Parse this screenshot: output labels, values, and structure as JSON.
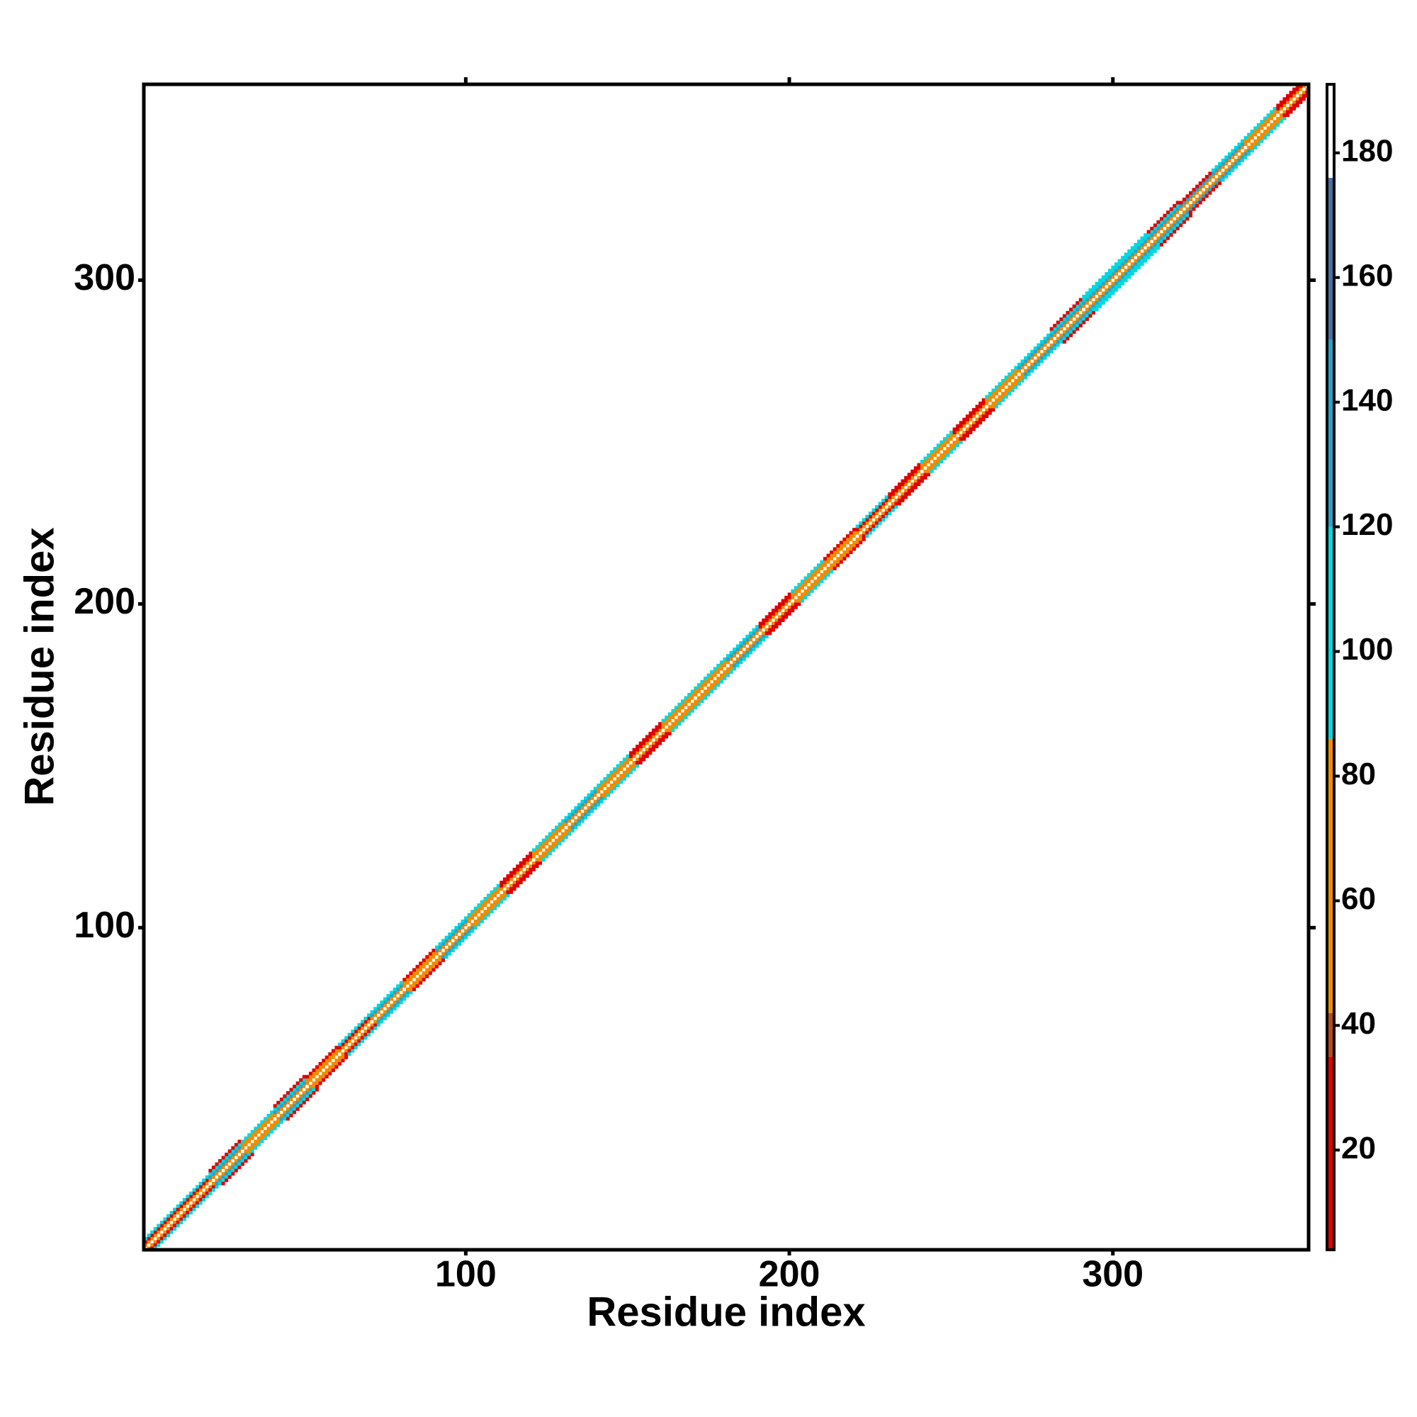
{
  "chart_data": {
    "type": "heatmap",
    "x_label": "Residue index",
    "y_label": "Residue index",
    "xlim": [
      0.5,
      360.5
    ],
    "ylim": [
      0.5,
      360.5
    ],
    "xticks": [
      100,
      200,
      300
    ],
    "yticks": [
      100,
      200,
      300
    ],
    "colorbar": {
      "clim": [
        4,
        191
      ],
      "ticks": [
        20,
        40,
        60,
        80,
        100,
        120,
        140,
        160,
        180
      ],
      "colormap": [
        {
          "max": 35,
          "color": "#e00000"
        },
        {
          "max": 42,
          "color": "#b54a1e"
        },
        {
          "max": 86,
          "color": "#f08c00"
        },
        {
          "max": 120,
          "color": "#00d8e0"
        },
        {
          "max": 150,
          "color": "#2f9fc4"
        },
        {
          "max": 176,
          "color": "#4a6fa0"
        },
        {
          "color": "#ffffff"
        }
      ]
    },
    "segments": [
      {
        "start": 1,
        "end": 10,
        "values": [
          185,
          60,
          20,
          100,
          null
        ]
      },
      {
        "start": 11,
        "end": 20,
        "values": [
          185,
          60,
          15,
          100,
          null
        ]
      },
      {
        "start": 21,
        "end": 30,
        "values": [
          185,
          55,
          140,
          95,
          15
        ]
      },
      {
        "start": 31,
        "end": 40,
        "values": [
          185,
          60,
          70,
          100,
          null
        ]
      },
      {
        "start": 41,
        "end": 50,
        "values": [
          185,
          55,
          140,
          95,
          15
        ]
      },
      {
        "start": 51,
        "end": 60,
        "values": [
          185,
          60,
          70,
          15,
          null
        ]
      },
      {
        "start": 61,
        "end": 70,
        "values": [
          185,
          60,
          20,
          100,
          null
        ]
      },
      {
        "start": 71,
        "end": 80,
        "values": [
          185,
          55,
          140,
          95,
          null
        ]
      },
      {
        "start": 81,
        "end": 90,
        "values": [
          185,
          60,
          70,
          15,
          null
        ]
      },
      {
        "start": 91,
        "end": 100,
        "values": [
          185,
          55,
          140,
          95,
          null
        ]
      },
      {
        "start": 101,
        "end": 110,
        "values": [
          185,
          60,
          70,
          100,
          null
        ]
      },
      {
        "start": 111,
        "end": 120,
        "values": [
          185,
          60,
          20,
          15,
          null
        ]
      },
      {
        "start": 121,
        "end": 130,
        "values": [
          185,
          60,
          70,
          100,
          null
        ]
      },
      {
        "start": 131,
        "end": 140,
        "values": [
          185,
          55,
          140,
          95,
          null
        ]
      },
      {
        "start": 141,
        "end": 150,
        "values": [
          185,
          60,
          70,
          100,
          null
        ]
      },
      {
        "start": 151,
        "end": 160,
        "values": [
          185,
          60,
          20,
          15,
          null
        ]
      },
      {
        "start": 161,
        "end": 170,
        "values": [
          185,
          60,
          70,
          100,
          null
        ]
      },
      {
        "start": 171,
        "end": 180,
        "values": [
          185,
          60,
          70,
          100,
          null
        ]
      },
      {
        "start": 181,
        "end": 190,
        "values": [
          185,
          55,
          140,
          95,
          null
        ]
      },
      {
        "start": 191,
        "end": 200,
        "values": [
          185,
          60,
          20,
          15,
          null
        ]
      },
      {
        "start": 201,
        "end": 210,
        "values": [
          185,
          60,
          70,
          100,
          null
        ]
      },
      {
        "start": 211,
        "end": 220,
        "values": [
          185,
          60,
          70,
          15,
          null
        ]
      },
      {
        "start": 221,
        "end": 230,
        "values": [
          185,
          60,
          20,
          100,
          null
        ]
      },
      {
        "start": 231,
        "end": 240,
        "values": [
          185,
          60,
          20,
          15,
          null
        ]
      },
      {
        "start": 241,
        "end": 250,
        "values": [
          185,
          60,
          70,
          100,
          null
        ]
      },
      {
        "start": 251,
        "end": 260,
        "values": [
          185,
          60,
          20,
          15,
          null
        ]
      },
      {
        "start": 261,
        "end": 270,
        "values": [
          185,
          55,
          70,
          100,
          null
        ]
      },
      {
        "start": 271,
        "end": 280,
        "values": [
          185,
          55,
          140,
          95,
          null
        ]
      },
      {
        "start": 281,
        "end": 290,
        "values": [
          185,
          55,
          140,
          95,
          15
        ]
      },
      {
        "start": 291,
        "end": 300,
        "values": [
          185,
          55,
          140,
          95,
          100
        ]
      },
      {
        "start": 301,
        "end": 310,
        "values": [
          185,
          55,
          140,
          95,
          100
        ]
      },
      {
        "start": 311,
        "end": 320,
        "values": [
          185,
          55,
          140,
          95,
          15
        ]
      },
      {
        "start": 321,
        "end": 330,
        "values": [
          185,
          60,
          140,
          15,
          null
        ]
      },
      {
        "start": 331,
        "end": 340,
        "values": [
          185,
          55,
          140,
          95,
          null
        ]
      },
      {
        "start": 341,
        "end": 350,
        "values": [
          185,
          60,
          70,
          100,
          null
        ]
      },
      {
        "start": 351,
        "end": 360,
        "values": [
          185,
          60,
          20,
          15,
          null
        ]
      }
    ]
  }
}
